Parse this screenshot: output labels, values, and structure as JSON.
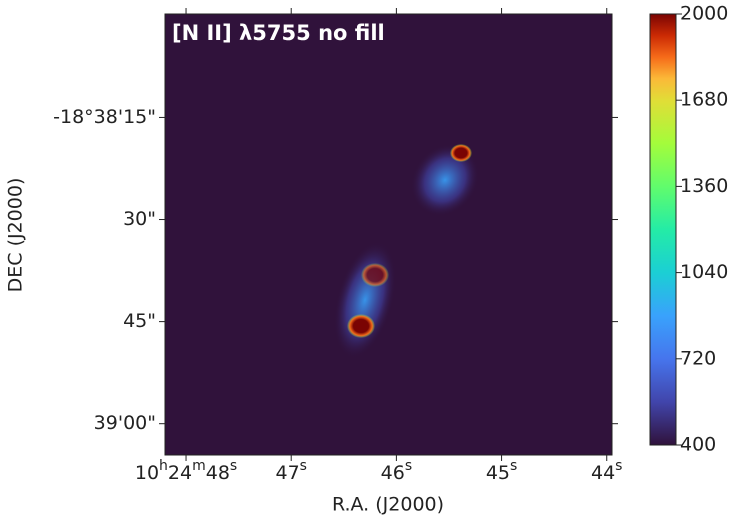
{
  "chart_data": {
    "type": "image",
    "title": "[N II] λ5755 no fill",
    "xlabel": "R.A. (J2000)",
    "ylabel": "DEC (J2000)",
    "xlim": [
      48.2,
      43.95
    ],
    "xticks": [
      {
        "value": 48,
        "label": "10h24m48s"
      },
      {
        "value": 47,
        "label": "47s"
      },
      {
        "value": 46,
        "label": "46s"
      },
      {
        "value": 45,
        "label": "45s"
      },
      {
        "value": 44,
        "label": "44s"
      }
    ],
    "ylim": [
      64.6,
      -0.2
    ],
    "yticks": [
      {
        "value": 15,
        "label": "-18°38'15\""
      },
      {
        "value": 30,
        "label": "30\""
      },
      {
        "value": 45,
        "label": "45\""
      },
      {
        "value": 60,
        "label": "39'00\""
      }
    ],
    "colorbar": {
      "lim": [
        400,
        2000
      ],
      "ticks": [
        400,
        720,
        1040,
        1360,
        1680,
        2000
      ]
    }
  }
}
